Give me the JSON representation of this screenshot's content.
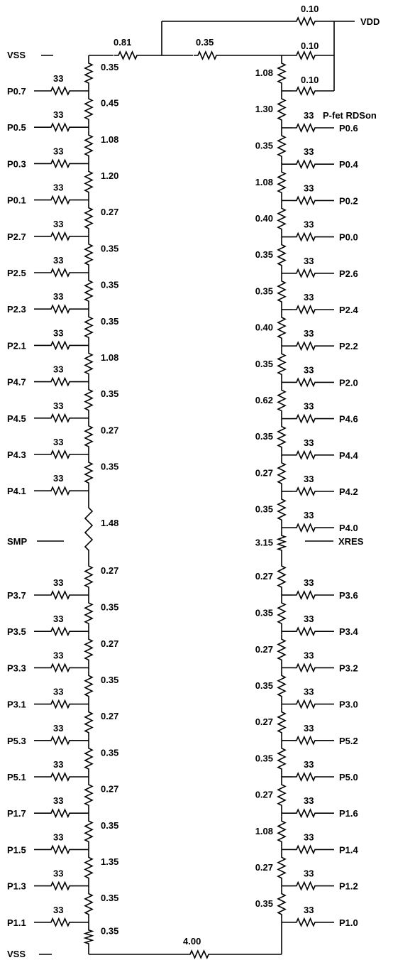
{
  "rails": {
    "vdd_label": "VDD",
    "vss_top_label": "VSS",
    "vss_bottom_label": "VSS",
    "smp_label": "SMP",
    "xres_label": "XRES"
  },
  "top_resistors": {
    "vss_to_junction": "0.81",
    "junction_to_right": "0.35",
    "vdd_bypass": "0.10",
    "right_top_1": "0.10",
    "right_top_2": "0.10"
  },
  "bottom_resistor": "4.00",
  "pin_resistance": "33",
  "right_annotation": "P-fet RDSon",
  "left_column": {
    "segments": [
      "0.35",
      "0.45",
      "1.08",
      "1.20",
      "0.27",
      "0.35",
      "0.35",
      "0.35",
      "1.08",
      "0.35",
      "0.27",
      "0.35",
      "1.48",
      "0.27",
      "0.35",
      "0.27",
      "0.35",
      "0.27",
      "0.35",
      "0.27",
      "0.35",
      "1.35",
      "0.35",
      "0.35"
    ],
    "pins_upper": [
      "P0.7",
      "P0.5",
      "P0.3",
      "P0.1",
      "P2.7",
      "P2.5",
      "P2.3",
      "P2.1",
      "P4.7",
      "P4.5",
      "P4.3",
      "P4.1"
    ],
    "pins_lower": [
      "P3.7",
      "P3.5",
      "P3.3",
      "P3.1",
      "P5.3",
      "P5.1",
      "P1.7",
      "P1.5",
      "P1.3",
      "P1.1"
    ]
  },
  "right_column": {
    "segments": [
      "1.08",
      "1.30",
      "0.35",
      "1.08",
      "0.40",
      "0.35",
      "0.35",
      "0.40",
      "0.35",
      "0.62",
      "0.35",
      "0.27",
      "0.35",
      "3.15",
      "0.27",
      "0.35",
      "0.27",
      "0.35",
      "0.27",
      "0.35",
      "0.27",
      "1.08",
      "0.27",
      "0.35"
    ],
    "pins_upper": [
      "P0.6",
      "P0.4",
      "P0.2",
      "P0.0",
      "P2.6",
      "P2.4",
      "P2.2",
      "P2.0",
      "P4.6",
      "P4.4",
      "P4.2",
      "P4.0"
    ],
    "pins_lower": [
      "P3.6",
      "P3.4",
      "P3.2",
      "P3.0",
      "P5.2",
      "P5.0",
      "P1.6",
      "P1.4",
      "P1.2",
      "P1.0"
    ]
  }
}
